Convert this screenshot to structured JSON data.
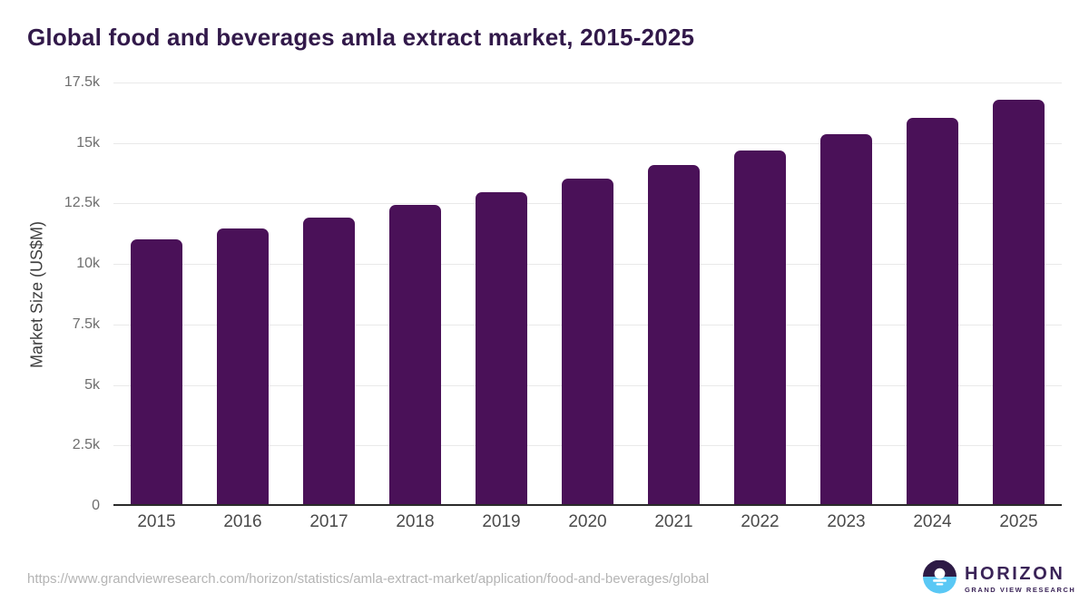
{
  "title": "Global food and beverages amla extract market, 2015-2025",
  "chart_data": {
    "type": "bar",
    "title": "Global food and beverages amla extract market, 2015-2025",
    "categories": [
      "2015",
      "2016",
      "2017",
      "2018",
      "2019",
      "2020",
      "2021",
      "2022",
      "2023",
      "2024",
      "2025"
    ],
    "values": [
      11000,
      11460,
      11930,
      12460,
      12960,
      13520,
      14090,
      14700,
      15360,
      16050,
      16780
    ],
    "xlabel": "",
    "ylabel": "Market Size (US$M)",
    "ylim": [
      0,
      17500
    ],
    "yticks": [
      0,
      2500,
      5000,
      7500,
      10000,
      12500,
      15000,
      17500
    ],
    "ytick_labels": [
      "0",
      "2.5k",
      "5k",
      "7.5k",
      "10k",
      "12.5k",
      "15k",
      "17.5k"
    ],
    "grid": true,
    "legend": false,
    "bar_color": "#4a1158"
  },
  "footer": {
    "source_url": "https://www.grandviewresearch.com/horizon/statistics/amla-extract-market/application/food-and-beverages/global",
    "logo": {
      "brand": "HORIZON",
      "subtitle": "GRAND VIEW RESEARCH"
    }
  },
  "colors": {
    "title": "#32194a",
    "bar": "#4a1158",
    "grid_line": "#e9e9e9",
    "axis_line": "#2b2b2b",
    "y_tick_text": "#6e6e6e",
    "x_tick_text": "#4a4a4a",
    "axis_title_text": "#3f3f3f",
    "url_text": "#b4b4b4",
    "logo_text": "#3a2357",
    "logo_mark_top": "#2d1a45",
    "logo_mark_bottom": "#5ac8f5"
  }
}
